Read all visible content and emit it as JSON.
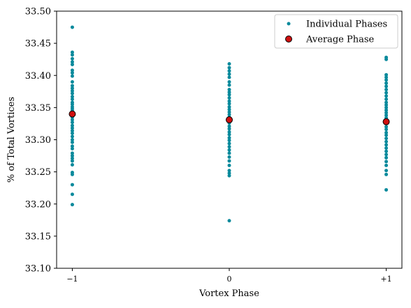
{
  "chart_data": {
    "type": "scatter",
    "xlabel": "Vortex Phase",
    "ylabel": "% of Total Vortices",
    "xlim": [
      -1.1,
      1.1
    ],
    "ylim": [
      33.1,
      33.5
    ],
    "x_ticks": [
      {
        "value": -1,
        "label": "−1"
      },
      {
        "value": 0,
        "label": "0"
      },
      {
        "value": 1,
        "label": "+1"
      }
    ],
    "y_ticks": [
      {
        "value": 33.1,
        "label": "33.10"
      },
      {
        "value": 33.15,
        "label": "33.15"
      },
      {
        "value": 33.2,
        "label": "33.20"
      },
      {
        "value": 33.25,
        "label": "33.25"
      },
      {
        "value": 33.3,
        "label": "33.30"
      },
      {
        "value": 33.35,
        "label": "33.35"
      },
      {
        "value": 33.4,
        "label": "33.40"
      },
      {
        "value": 33.45,
        "label": "33.45"
      },
      {
        "value": 33.5,
        "label": "33.50"
      }
    ],
    "grid": false,
    "legend_position": "top-right",
    "series": [
      {
        "name": "Individual Phases",
        "color": "#0a8a9c",
        "points": [
          {
            "x": -1,
            "y": 33.475
          },
          {
            "x": -1,
            "y": 33.436
          },
          {
            "x": -1,
            "y": 33.432
          },
          {
            "x": -1,
            "y": 33.426
          },
          {
            "x": -1,
            "y": 33.421
          },
          {
            "x": -1,
            "y": 33.417
          },
          {
            "x": -1,
            "y": 33.408
          },
          {
            "x": -1,
            "y": 33.404
          },
          {
            "x": -1,
            "y": 33.399
          },
          {
            "x": -1,
            "y": 33.39
          },
          {
            "x": -1,
            "y": 33.384
          },
          {
            "x": -1,
            "y": 33.38
          },
          {
            "x": -1,
            "y": 33.376
          },
          {
            "x": -1,
            "y": 33.372
          },
          {
            "x": -1,
            "y": 33.367
          },
          {
            "x": -1,
            "y": 33.363
          },
          {
            "x": -1,
            "y": 33.358
          },
          {
            "x": -1,
            "y": 33.355
          },
          {
            "x": -1,
            "y": 33.351
          },
          {
            "x": -1,
            "y": 33.348
          },
          {
            "x": -1,
            "y": 33.345
          },
          {
            "x": -1,
            "y": 33.342
          },
          {
            "x": -1,
            "y": 33.338
          },
          {
            "x": -1,
            "y": 33.335
          },
          {
            "x": -1,
            "y": 33.331
          },
          {
            "x": -1,
            "y": 33.327
          },
          {
            "x": -1,
            "y": 33.322
          },
          {
            "x": -1,
            "y": 33.318
          },
          {
            "x": -1,
            "y": 33.314
          },
          {
            "x": -1,
            "y": 33.31
          },
          {
            "x": -1,
            "y": 33.305
          },
          {
            "x": -1,
            "y": 33.3
          },
          {
            "x": -1,
            "y": 33.296
          },
          {
            "x": -1,
            "y": 33.29
          },
          {
            "x": -1,
            "y": 33.286
          },
          {
            "x": -1,
            "y": 33.279
          },
          {
            "x": -1,
            "y": 33.275
          },
          {
            "x": -1,
            "y": 33.271
          },
          {
            "x": -1,
            "y": 33.267
          },
          {
            "x": -1,
            "y": 33.261
          },
          {
            "x": -1,
            "y": 33.249
          },
          {
            "x": -1,
            "y": 33.246
          },
          {
            "x": -1,
            "y": 33.23
          },
          {
            "x": -1,
            "y": 33.215
          },
          {
            "x": -1,
            "y": 33.199
          },
          {
            "x": 0,
            "y": 33.418
          },
          {
            "x": 0,
            "y": 33.412
          },
          {
            "x": 0,
            "y": 33.407
          },
          {
            "x": 0,
            "y": 33.402
          },
          {
            "x": 0,
            "y": 33.397
          },
          {
            "x": 0,
            "y": 33.39
          },
          {
            "x": 0,
            "y": 33.385
          },
          {
            "x": 0,
            "y": 33.378
          },
          {
            "x": 0,
            "y": 33.374
          },
          {
            "x": 0,
            "y": 33.37
          },
          {
            "x": 0,
            "y": 33.365
          },
          {
            "x": 0,
            "y": 33.36
          },
          {
            "x": 0,
            "y": 33.356
          },
          {
            "x": 0,
            "y": 33.351
          },
          {
            "x": 0,
            "y": 33.347
          },
          {
            "x": 0,
            "y": 33.343
          },
          {
            "x": 0,
            "y": 33.339
          },
          {
            "x": 0,
            "y": 33.335
          },
          {
            "x": 0,
            "y": 33.33
          },
          {
            "x": 0,
            "y": 33.326
          },
          {
            "x": 0,
            "y": 33.321
          },
          {
            "x": 0,
            "y": 33.317
          },
          {
            "x": 0,
            "y": 33.312
          },
          {
            "x": 0,
            "y": 33.308
          },
          {
            "x": 0,
            "y": 33.303
          },
          {
            "x": 0,
            "y": 33.299
          },
          {
            "x": 0,
            "y": 33.294
          },
          {
            "x": 0,
            "y": 33.289
          },
          {
            "x": 0,
            "y": 33.284
          },
          {
            "x": 0,
            "y": 33.279
          },
          {
            "x": 0,
            "y": 33.273
          },
          {
            "x": 0,
            "y": 33.267
          },
          {
            "x": 0,
            "y": 33.26
          },
          {
            "x": 0,
            "y": 33.252
          },
          {
            "x": 0,
            "y": 33.248
          },
          {
            "x": 0,
            "y": 33.244
          },
          {
            "x": 0,
            "y": 33.174
          },
          {
            "x": 1,
            "y": 33.428
          },
          {
            "x": 1,
            "y": 33.425
          },
          {
            "x": 1,
            "y": 33.401
          },
          {
            "x": 1,
            "y": 33.397
          },
          {
            "x": 1,
            "y": 33.393
          },
          {
            "x": 1,
            "y": 33.388
          },
          {
            "x": 1,
            "y": 33.383
          },
          {
            "x": 1,
            "y": 33.378
          },
          {
            "x": 1,
            "y": 33.373
          },
          {
            "x": 1,
            "y": 33.368
          },
          {
            "x": 1,
            "y": 33.363
          },
          {
            "x": 1,
            "y": 33.358
          },
          {
            "x": 1,
            "y": 33.354
          },
          {
            "x": 1,
            "y": 33.35
          },
          {
            "x": 1,
            "y": 33.346
          },
          {
            "x": 1,
            "y": 33.342
          },
          {
            "x": 1,
            "y": 33.338
          },
          {
            "x": 1,
            "y": 33.334
          },
          {
            "x": 1,
            "y": 33.329
          },
          {
            "x": 1,
            "y": 33.325
          },
          {
            "x": 1,
            "y": 33.32
          },
          {
            "x": 1,
            "y": 33.316
          },
          {
            "x": 1,
            "y": 33.311
          },
          {
            "x": 1,
            "y": 33.307
          },
          {
            "x": 1,
            "y": 33.302
          },
          {
            "x": 1,
            "y": 33.297
          },
          {
            "x": 1,
            "y": 33.292
          },
          {
            "x": 1,
            "y": 33.287
          },
          {
            "x": 1,
            "y": 33.282
          },
          {
            "x": 1,
            "y": 33.277
          },
          {
            "x": 1,
            "y": 33.272
          },
          {
            "x": 1,
            "y": 33.266
          },
          {
            "x": 1,
            "y": 33.26
          },
          {
            "x": 1,
            "y": 33.252
          },
          {
            "x": 1,
            "y": 33.246
          },
          {
            "x": 1,
            "y": 33.222
          }
        ]
      },
      {
        "name": "Average Phase",
        "color": "#d01010",
        "edge_color": "#000000",
        "points": [
          {
            "x": -1,
            "y": 33.34
          },
          {
            "x": 0,
            "y": 33.331
          },
          {
            "x": 1,
            "y": 33.328
          }
        ]
      }
    ]
  }
}
